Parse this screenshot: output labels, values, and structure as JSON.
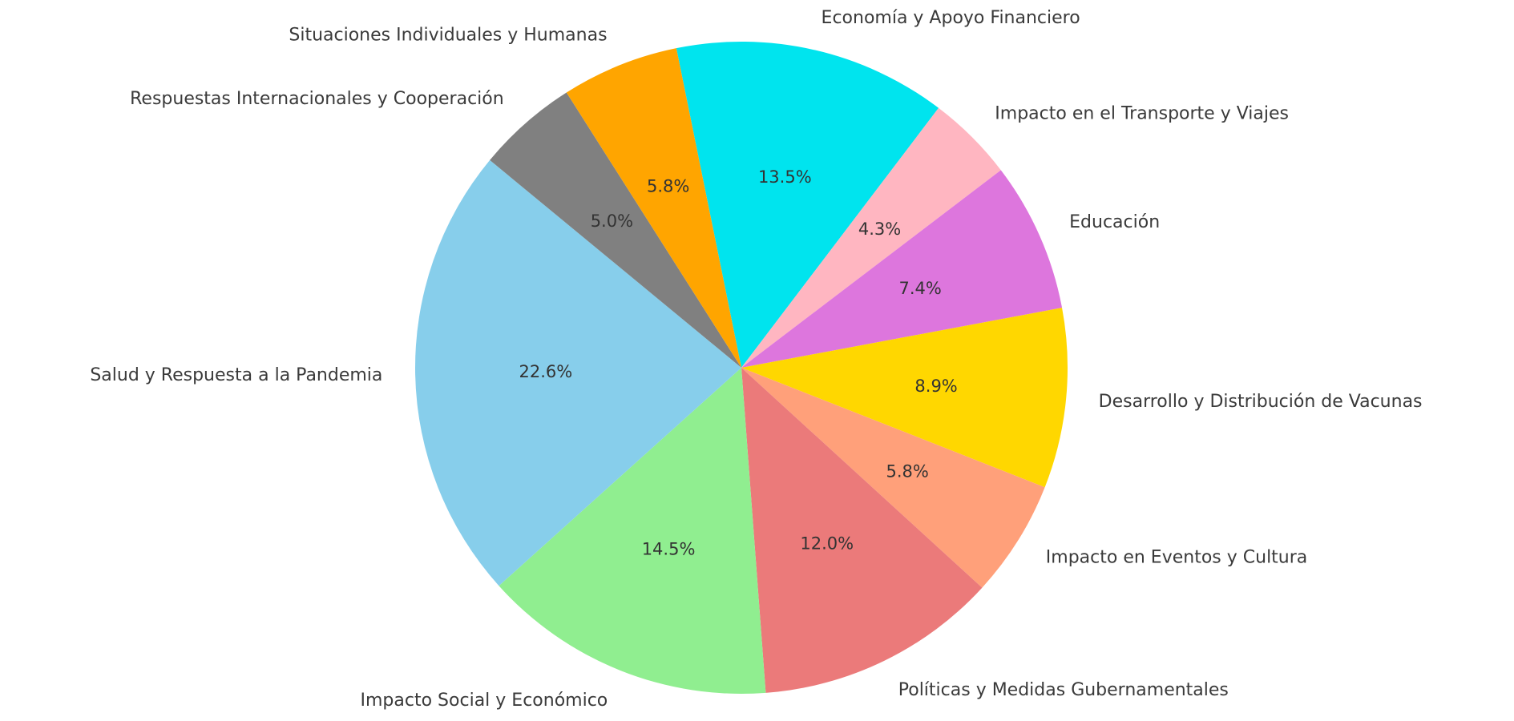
{
  "chart_data": {
    "type": "pie",
    "title": "",
    "legend": "none",
    "background": "#FFFFFF",
    "text_color": "#3A3A3A",
    "pct_text_color": "#333333",
    "start_angle_deg": 101.5,
    "direction": "clockwise",
    "label_distance": 1.1,
    "pct_distance": 0.6,
    "slices": [
      {
        "label": "Economía y Apoyo Financiero",
        "value": 13.5,
        "pct_label": "13.5%",
        "color": "#00E4EE"
      },
      {
        "label": "Impacto en el Transporte y Viajes",
        "value": 4.3,
        "pct_label": "4.3%",
        "color": "#FFB6C1"
      },
      {
        "label": "Educación",
        "value": 7.4,
        "pct_label": "7.4%",
        "color": "#DD76DD"
      },
      {
        "label": "Desarrollo y Distribución de Vacunas",
        "value": 8.9,
        "pct_label": "8.9%",
        "color": "#FFD700"
      },
      {
        "label": "Impacto en Eventos y Cultura",
        "value": 5.8,
        "pct_label": "5.8%",
        "color": "#FFA07A"
      },
      {
        "label": "Políticas y Medidas Gubernamentales",
        "value": 12.0,
        "pct_label": "12.0%",
        "color": "#EB7A7A"
      },
      {
        "label": "Impacto Social y Económico",
        "value": 14.5,
        "pct_label": "14.5%",
        "color": "#90EE90"
      },
      {
        "label": "Salud y Respuesta a la Pandemia",
        "value": 22.6,
        "pct_label": "22.6%",
        "color": "#87CEEB"
      },
      {
        "label": "Respuestas Internacionales y Cooperación",
        "value": 5.0,
        "pct_label": "5.0%",
        "color": "#808080"
      },
      {
        "label": "Situaciones Individuales y Humanas",
        "value": 5.8,
        "pct_label": "5.8%",
        "color": "#FFA500"
      }
    ]
  }
}
